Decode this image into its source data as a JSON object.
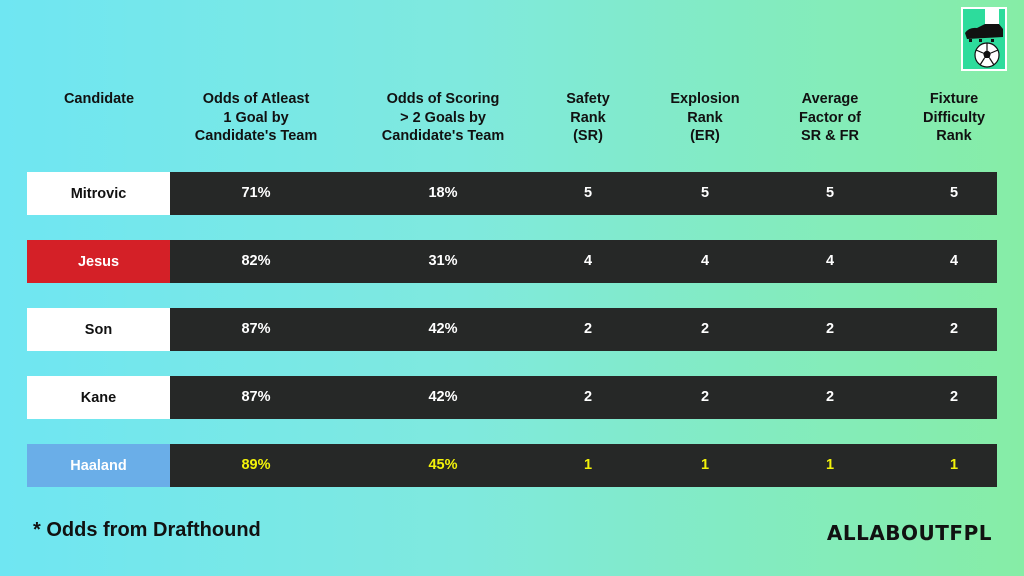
{
  "headers": {
    "candidate": "Candidate",
    "odds_one_goal": "Odds of Atleast\n1 Goal by\nCandidate's Team",
    "odds_two_goals": "Odds of Scoring\n> 2 Goals by\nCandidate's Team",
    "safety_rank": "Safety\nRank\n(SR)",
    "explosion_rank": "Explosion\nRank\n(ER)",
    "average_factor": "Average\nFactor of\nSR & FR",
    "fixture_rank": "Fixture\nDifficulty\nRank"
  },
  "rows": [
    {
      "name": "Mitrovic",
      "odds1": "71%",
      "odds2": "18%",
      "sr": "5",
      "er": "5",
      "avg": "5",
      "fdr": "5",
      "name_bg": "#ffffff",
      "name_color": "#111111",
      "value_color": "#ffffff"
    },
    {
      "name": "Jesus",
      "odds1": "82%",
      "odds2": "31%",
      "sr": "4",
      "er": "4",
      "avg": "4",
      "fdr": "4",
      "name_bg": "#d42027",
      "name_color": "#ffffff",
      "value_color": "#ffffff"
    },
    {
      "name": "Son",
      "odds1": "87%",
      "odds2": "42%",
      "sr": "2",
      "er": "2",
      "avg": "2",
      "fdr": "2",
      "name_bg": "#ffffff",
      "name_color": "#111111",
      "value_color": "#ffffff"
    },
    {
      "name": "Kane",
      "odds1": "87%",
      "odds2": "42%",
      "sr": "2",
      "er": "2",
      "avg": "2",
      "fdr": "2",
      "name_bg": "#ffffff",
      "name_color": "#111111",
      "value_color": "#ffffff"
    },
    {
      "name": "Haaland",
      "odds1": "89%",
      "odds2": "45%",
      "sr": "1",
      "er": "1",
      "avg": "1",
      "fdr": "1",
      "name_bg": "#6aaee8",
      "name_color": "#ffffff",
      "value_color": "#f2f20a"
    }
  ],
  "footnote": "*  Odds from Drafthound",
  "brand": "ALLABOUTFPL",
  "logo_icon": "boot-and-football-icon",
  "colors": {
    "bar": "#262827",
    "highlight": "#f2f20a"
  }
}
